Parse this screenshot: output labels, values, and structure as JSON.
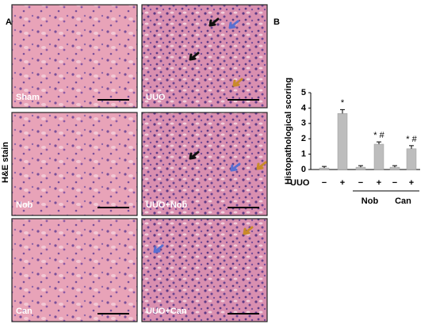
{
  "panel_a": {
    "label": "A",
    "stain_label": "H&E stain",
    "panels": [
      "Sham",
      "UUO",
      "Nob",
      "UUO+Nob",
      "Can",
      "UUO+Can"
    ]
  },
  "chart_data": {
    "type": "bar",
    "label": "B",
    "ylabel": "Histopathological scoring",
    "categories": [
      "−",
      "+",
      "−",
      "+",
      "−",
      "+"
    ],
    "row_label": "UUO",
    "groups": [
      {
        "name": "Nob",
        "from": 2,
        "to": 3
      },
      {
        "name": "Can",
        "from": 4,
        "to": 5
      }
    ],
    "values": [
      0.1,
      3.65,
      0.15,
      1.65,
      0.15,
      1.35
    ],
    "errors": [
      0.1,
      0.25,
      0.1,
      0.15,
      0.1,
      0.2
    ],
    "annotations": [
      null,
      "*",
      null,
      "* #",
      null,
      "* #"
    ],
    "color": "#bdbdbd",
    "ylim": [
      0,
      5
    ],
    "yticks": [
      0,
      1,
      2,
      3,
      4,
      5
    ]
  }
}
